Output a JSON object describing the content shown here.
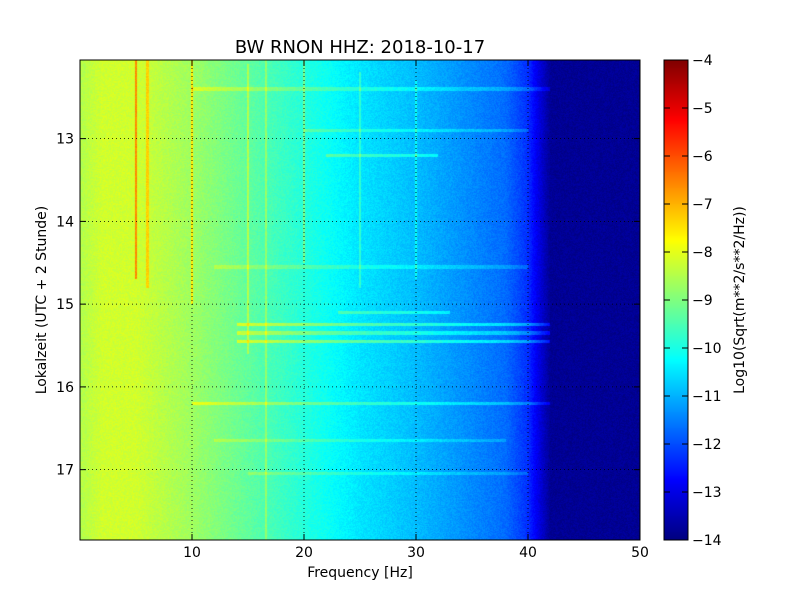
{
  "chart_data": {
    "type": "heatmap",
    "title": "BW RNON HHZ: 2018-10-17",
    "xlabel": "Frequency [Hz]",
    "ylabel": "Lokalzeit (UTC + 2 Stunde)",
    "xlim": [
      0,
      50
    ],
    "ylim": [
      17.85,
      12.05
    ],
    "x_ticks": [
      10,
      20,
      30,
      40,
      50
    ],
    "y_ticks": [
      13,
      14,
      15,
      16,
      17
    ],
    "grid": true,
    "colormap": "jet",
    "colorbar": {
      "label": "Log10(Sqrt(m**2/s**2/Hz))",
      "range": [
        -14,
        -4
      ],
      "ticks": [
        -4,
        -5,
        -6,
        -7,
        -8,
        -9,
        -10,
        -11,
        -12,
        -13,
        -14
      ]
    },
    "background_profile": {
      "frequency_hz": [
        0,
        2,
        5,
        10,
        15,
        20,
        25,
        30,
        35,
        38,
        40,
        42,
        50
      ],
      "value": [
        -8.5,
        -8.2,
        -8.2,
        -8.7,
        -9.3,
        -9.9,
        -10.5,
        -10.9,
        -11.4,
        -11.7,
        -12.3,
        -13.8,
        -13.8
      ]
    },
    "spectral_lines": [
      {
        "frequency_hz": 5.0,
        "time_range": [
          12.05,
          14.7
        ],
        "strength": 1.6
      },
      {
        "frequency_hz": 6.0,
        "time_range": [
          12.05,
          14.8
        ],
        "strength": 1.0
      },
      {
        "frequency_hz": 10.0,
        "time_range": [
          12.05,
          15.0
        ],
        "strength": 1.2
      },
      {
        "frequency_hz": 15.0,
        "time_range": [
          12.1,
          15.6
        ],
        "strength": 0.8
      },
      {
        "frequency_hz": 16.6,
        "time_range": [
          12.05,
          17.85
        ],
        "strength": 0.7
      },
      {
        "frequency_hz": 20.0,
        "time_range": [
          12.05,
          14.5
        ],
        "strength": 0.8
      },
      {
        "frequency_hz": 25.0,
        "time_range": [
          12.2,
          14.8
        ],
        "strength": 0.7
      },
      {
        "frequency_hz": 30.0,
        "time_range": [
          12.3,
          14.7
        ],
        "strength": 0.7
      }
    ],
    "time_bands": [
      {
        "time": 12.4,
        "freq_range": [
          10,
          42
        ],
        "strength": 0.6
      },
      {
        "time": 12.9,
        "freq_range": [
          20,
          40
        ],
        "strength": 0.6
      },
      {
        "time": 13.2,
        "freq_range": [
          22,
          32
        ],
        "strength": 0.8
      },
      {
        "time": 14.55,
        "freq_range": [
          12,
          40
        ],
        "strength": 0.5
      },
      {
        "time": 15.1,
        "freq_range": [
          23,
          33
        ],
        "strength": 0.8
      },
      {
        "time": 15.25,
        "freq_range": [
          14,
          42
        ],
        "strength": 1.1
      },
      {
        "time": 15.35,
        "freq_range": [
          14,
          42
        ],
        "strength": 0.9
      },
      {
        "time": 15.45,
        "freq_range": [
          14,
          42
        ],
        "strength": 1.1
      },
      {
        "time": 16.2,
        "freq_range": [
          10,
          42
        ],
        "strength": 0.8
      },
      {
        "time": 16.65,
        "freq_range": [
          12,
          38
        ],
        "strength": 0.5
      },
      {
        "time": 17.05,
        "freq_range": [
          15,
          40
        ],
        "strength": 0.5
      }
    ]
  }
}
